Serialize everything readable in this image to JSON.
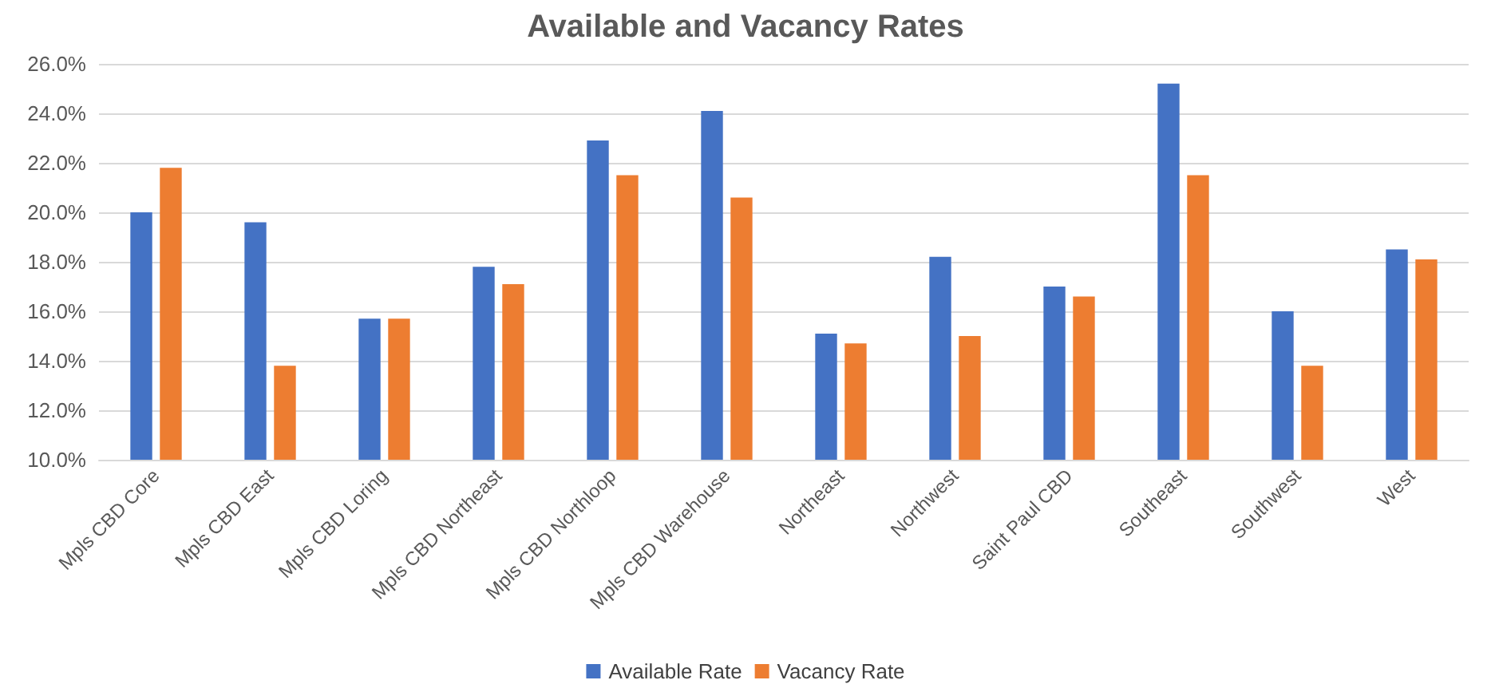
{
  "chart_data": {
    "type": "bar",
    "title": "Available and Vacancy Rates",
    "categories": [
      "Mpls CBD Core",
      "Mpls CBD East",
      "Mpls CBD Loring",
      "Mpls CBD Northeast",
      "Mpls CBD Northloop",
      "Mpls CBD Warehouse",
      "Northeast",
      "Northwest",
      "Saint Paul CBD",
      "Southeast",
      "Southwest",
      "West"
    ],
    "series": [
      {
        "name": "Available Rate",
        "color": "#4472c4",
        "values": [
          20.0,
          19.6,
          15.7,
          17.8,
          22.9,
          24.1,
          15.1,
          18.2,
          17.0,
          25.2,
          16.0,
          18.5
        ]
      },
      {
        "name": "Vacancy Rate",
        "color": "#ed7d31",
        "values": [
          21.8,
          13.8,
          15.7,
          17.1,
          21.5,
          20.6,
          14.7,
          15.0,
          16.6,
          21.5,
          13.8,
          18.1
        ]
      }
    ],
    "ylim": [
      10,
      26
    ],
    "yticks": [
      {
        "value": 10,
        "label": "10.0%"
      },
      {
        "value": 12,
        "label": "12.0%"
      },
      {
        "value": 14,
        "label": "14.0%"
      },
      {
        "value": 16,
        "label": "16.0%"
      },
      {
        "value": 18,
        "label": "18.0%"
      },
      {
        "value": 20,
        "label": "20.0%"
      },
      {
        "value": 22,
        "label": "22.0%"
      },
      {
        "value": 24,
        "label": "24.0%"
      },
      {
        "value": 26,
        "label": "26.0%"
      }
    ],
    "grid": "y",
    "legend": "bottom"
  }
}
